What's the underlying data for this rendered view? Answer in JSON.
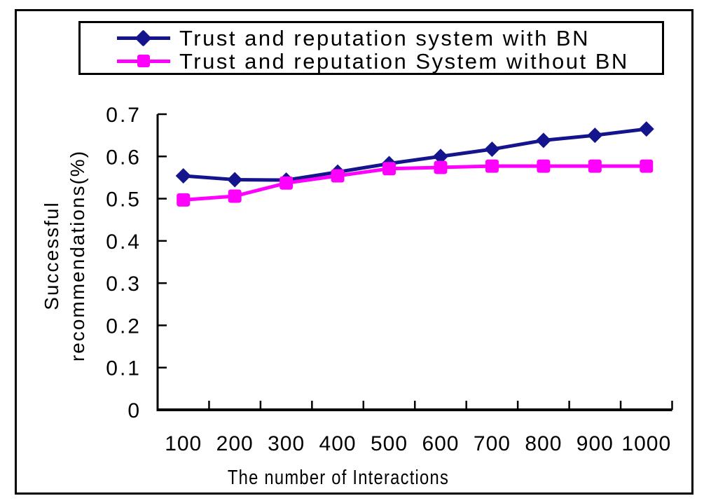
{
  "chart_data": {
    "type": "line",
    "x": [
      100,
      200,
      300,
      400,
      500,
      600,
      700,
      800,
      900,
      1000
    ],
    "xlabel": "The number of Interactions",
    "ylabel": "Successful recommendations(%)",
    "ylabel_lines": [
      "Successful",
      "recommendations(%)"
    ],
    "ylim": [
      0,
      0.7
    ],
    "yticks": [
      "0",
      "0.1",
      "0.2",
      "0.3",
      "0.4",
      "0.5",
      "0.6",
      "0.7"
    ],
    "grid": false,
    "legend_position": "top-boxed",
    "series": [
      {
        "name": "Trust and reputation system with BN",
        "color": "#14148C",
        "marker": "diamond",
        "values": [
          0.554,
          0.545,
          0.544,
          0.563,
          0.583,
          0.6,
          0.617,
          0.638,
          0.65,
          0.665
        ]
      },
      {
        "name": "Trust and reputation System without BN",
        "color": "#FF00FF",
        "marker": "square",
        "values": [
          0.497,
          0.506,
          0.537,
          0.554,
          0.571,
          0.574,
          0.577,
          0.577,
          0.577,
          0.577
        ]
      }
    ]
  },
  "colors": {
    "axis": "#000000",
    "border": "#000000",
    "background": "#FFFFFF"
  }
}
